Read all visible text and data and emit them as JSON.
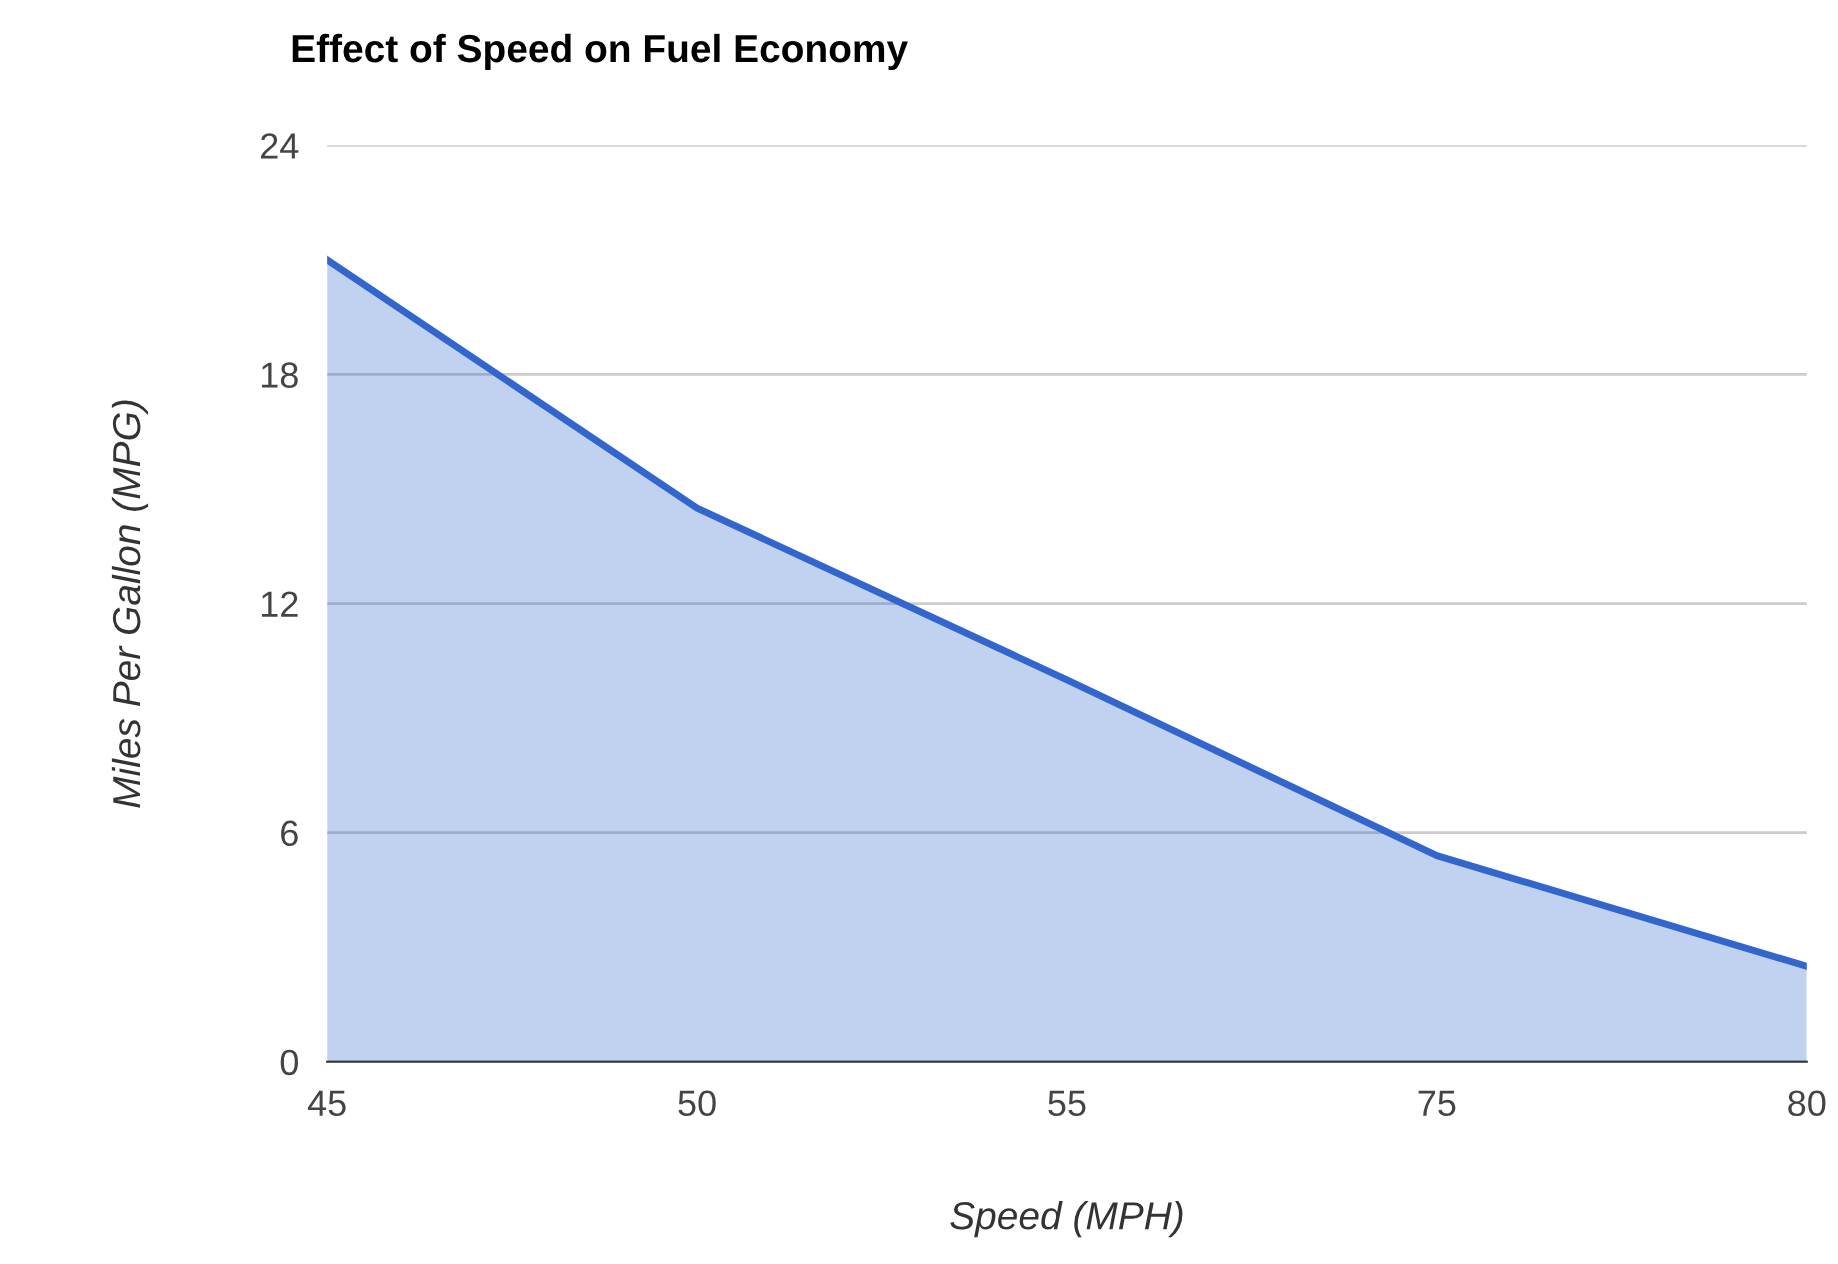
{
  "chart_data": {
    "type": "area",
    "title": "Effect of Speed on Fuel Economy",
    "xlabel": "Speed (MPH)",
    "ylabel": "Miles Per Gallon (MPG)",
    "categories": [
      "45",
      "50",
      "55",
      "75",
      "80"
    ],
    "series": [
      {
        "color": "#3366cc",
        "values": [
          21,
          14.5,
          10,
          5.4,
          2.5
        ]
      }
    ],
    "ylim": [
      0,
      24
    ],
    "yticks": [
      0,
      6,
      12,
      18,
      24
    ],
    "grid": "y",
    "legend": false
  }
}
